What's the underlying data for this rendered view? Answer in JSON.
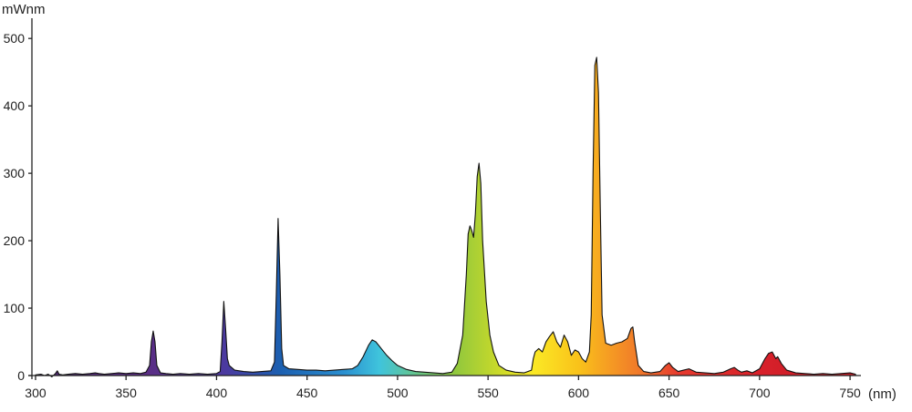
{
  "chart_data": {
    "type": "area",
    "title": "",
    "ylabel": "mWnm",
    "xlabel": "(nm)",
    "xlim": [
      298,
      756
    ],
    "ylim": [
      0,
      530
    ],
    "x_ticks": [
      300,
      350,
      400,
      450,
      500,
      550,
      600,
      650,
      700,
      750
    ],
    "y_ticks": [
      0,
      100,
      200,
      300,
      400,
      500
    ],
    "grid": false,
    "legend": "none",
    "colors": {
      "axis": "#222222",
      "outline": "#111111",
      "gradient": [
        {
          "nm": 300,
          "color": "#4b2a6b"
        },
        {
          "nm": 360,
          "color": "#5b2d84"
        },
        {
          "nm": 405,
          "color": "#4b3aa0"
        },
        {
          "nm": 435,
          "color": "#1c5fb0"
        },
        {
          "nm": 470,
          "color": "#2a8fd0"
        },
        {
          "nm": 490,
          "color": "#3fc4dc"
        },
        {
          "nm": 530,
          "color": "#8cc63f"
        },
        {
          "nm": 555,
          "color": "#c8d92a"
        },
        {
          "nm": 575,
          "color": "#fbe925"
        },
        {
          "nm": 600,
          "color": "#f9c21a"
        },
        {
          "nm": 615,
          "color": "#f6a022"
        },
        {
          "nm": 635,
          "color": "#f0752a"
        },
        {
          "nm": 655,
          "color": "#e63a2e"
        },
        {
          "nm": 700,
          "color": "#d8202a"
        },
        {
          "nm": 756,
          "color": "#c11c25"
        }
      ]
    },
    "series": [
      {
        "x": [
          300,
          303,
          305,
          307,
          309,
          311,
          312,
          313,
          315,
          318,
          322,
          326,
          330,
          333,
          335,
          338,
          342,
          346,
          350,
          354,
          358,
          361,
          363,
          364,
          365,
          366,
          367,
          369,
          372,
          376,
          380,
          385,
          390,
          395,
          400,
          402,
          403,
          404,
          405,
          406,
          407,
          410,
          415,
          420,
          425,
          430,
          432,
          433,
          434,
          435,
          436,
          437,
          440,
          445,
          450,
          455,
          460,
          465,
          470,
          475,
          478,
          481,
          484,
          486,
          488,
          491,
          494,
          497,
          500,
          505,
          510,
          515,
          520,
          525,
          530,
          533,
          536,
          538,
          539,
          540,
          541,
          542,
          543,
          544,
          545,
          546,
          547,
          549,
          551,
          553,
          556,
          560,
          565,
          570,
          574,
          575,
          576,
          578,
          580,
          582,
          584,
          586,
          588,
          590,
          592,
          594,
          596,
          598,
          600,
          602,
          604,
          606,
          607,
          608,
          609,
          610,
          611,
          612,
          613,
          615,
          618,
          621,
          624,
          627,
          629,
          630,
          631,
          633,
          636,
          640,
          645,
          648,
          650,
          652,
          655,
          658,
          661,
          665,
          670,
          675,
          680,
          684,
          686,
          688,
          690,
          693,
          696,
          700,
          703,
          705,
          707,
          709,
          710,
          712,
          715,
          720,
          725,
          730,
          735,
          740,
          745,
          750,
          753
        ],
        "y": [
          1,
          2,
          0,
          2,
          -2,
          3,
          7,
          2,
          1,
          2,
          3,
          2,
          3,
          4,
          3,
          2,
          3,
          4,
          3,
          4,
          3,
          5,
          15,
          50,
          66,
          50,
          15,
          4,
          3,
          2,
          3,
          2,
          3,
          2,
          3,
          6,
          50,
          110,
          70,
          25,
          15,
          8,
          6,
          5,
          6,
          7,
          20,
          120,
          233,
          150,
          40,
          15,
          10,
          9,
          8,
          8,
          7,
          8,
          9,
          10,
          15,
          28,
          45,
          53,
          50,
          40,
          30,
          22,
          15,
          9,
          6,
          5,
          4,
          3,
          5,
          18,
          60,
          150,
          210,
          222,
          215,
          205,
          240,
          295,
          315,
          285,
          200,
          110,
          60,
          35,
          15,
          8,
          5,
          4,
          8,
          25,
          35,
          40,
          35,
          50,
          58,
          65,
          50,
          42,
          60,
          50,
          30,
          38,
          35,
          25,
          20,
          35,
          90,
          300,
          460,
          472,
          420,
          250,
          90,
          48,
          45,
          48,
          50,
          55,
          70,
          72,
          50,
          15,
          6,
          4,
          6,
          15,
          19,
          12,
          6,
          8,
          10,
          5,
          4,
          3,
          5,
          10,
          12,
          8,
          5,
          7,
          4,
          10,
          25,
          33,
          35,
          25,
          28,
          18,
          8,
          4,
          3,
          2,
          3,
          2,
          3,
          4,
          2
        ]
      }
    ]
  }
}
